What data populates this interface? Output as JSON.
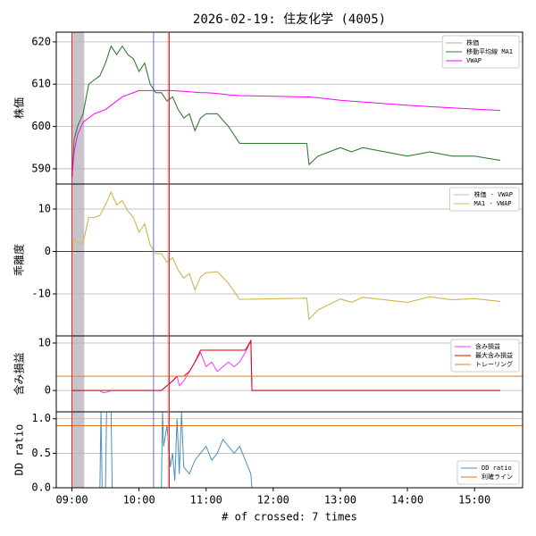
{
  "chart_data": [
    {
      "type": "line",
      "title": "2026-02-19: 住友化学 (4005)",
      "ylabel": "株価",
      "xlim": [
        526,
        943
      ],
      "ylim": [
        586.4,
        622.3
      ],
      "yticks": [
        590,
        600,
        610,
        620
      ],
      "grid": true,
      "legend": "upper right",
      "shade": [
        540,
        551
      ],
      "vlines": [
        {
          "x": 540,
          "color": "#cc0000"
        },
        {
          "x": 613,
          "color": "#4444ff"
        },
        {
          "x": 626,
          "color": "#ff6666"
        },
        {
          "x": 627,
          "color": "#cc0000"
        }
      ],
      "x": [
        540,
        542,
        545,
        550,
        555,
        560,
        565,
        570,
        575,
        580,
        585,
        590,
        595,
        600,
        605,
        610,
        615,
        620,
        625,
        630,
        635,
        640,
        645,
        650,
        655,
        660,
        670,
        680,
        690,
        750,
        752,
        760,
        770,
        780,
        790,
        800,
        820,
        840,
        860,
        880,
        900,
        923
      ],
      "series": [
        {
          "name": "株価",
          "color": "#aaaaaa",
          "values": [
            588,
            597,
            600,
            603,
            610,
            611,
            612,
            615,
            619,
            617,
            619,
            617,
            616,
            613,
            615,
            610,
            608,
            608,
            606,
            607,
            604,
            602,
            603,
            599,
            602,
            603,
            603,
            600,
            596,
            596,
            591,
            593,
            594,
            595,
            594,
            595,
            594,
            593,
            594,
            593,
            593,
            592
          ]
        },
        {
          "name": "移動平均線 MA1",
          "color": "#2e7d32",
          "values": [
            588,
            597,
            600,
            603,
            610,
            611,
            612,
            615,
            619,
            617,
            619,
            617,
            616,
            613,
            615,
            610,
            608,
            608,
            606,
            607,
            604,
            602,
            603,
            599,
            602,
            603,
            603,
            600,
            596,
            596,
            591,
            593,
            594,
            595,
            594,
            595,
            594,
            593,
            594,
            593,
            593,
            592
          ]
        },
        {
          "name": "VWAP",
          "color": "#ff00ff",
          "values": [
            588,
            594,
            598,
            601,
            602,
            603,
            603.5,
            604,
            605,
            606,
            607,
            607.5,
            608,
            608.5,
            608.5,
            608.5,
            608.5,
            608.5,
            608.5,
            608.5,
            608.4,
            608.3,
            608.2,
            608.1,
            608,
            608,
            607.8,
            607.5,
            607.3,
            607,
            607,
            606.8,
            606.5,
            606.2,
            606,
            605.8,
            605.4,
            605,
            604.7,
            604.4,
            604.1,
            603.8
          ]
        }
      ]
    },
    {
      "type": "line",
      "ylabel": "乖離度",
      "xlim": [
        526,
        943
      ],
      "ylim": [
        -19.9,
        15.9
      ],
      "yticks": [
        -10,
        0,
        10
      ],
      "grid": true,
      "legend": "upper right",
      "x": [
        540,
        542,
        545,
        550,
        555,
        560,
        565,
        570,
        575,
        580,
        585,
        590,
        595,
        600,
        605,
        610,
        615,
        620,
        625,
        630,
        635,
        640,
        645,
        650,
        655,
        660,
        670,
        680,
        690,
        750,
        752,
        760,
        770,
        780,
        790,
        800,
        820,
        840,
        860,
        880,
        900,
        923
      ],
      "series": [
        {
          "name": "株価 - VWAP",
          "color": "#bbbbbb",
          "values": [
            0,
            3,
            2,
            2,
            8,
            8,
            8.5,
            11,
            14,
            11,
            12,
            9.5,
            8,
            4.5,
            6.5,
            1.5,
            -0.5,
            -0.5,
            -2.5,
            -1.5,
            -4.4,
            -6.3,
            -5.2,
            -9.1,
            -6,
            -5,
            -4.8,
            -7.5,
            -11.3,
            -11,
            -16,
            -13.8,
            -12.5,
            -11.2,
            -12,
            -10.8,
            -11.4,
            -12,
            -10.7,
            -11.4,
            -11.1,
            -11.8
          ]
        },
        {
          "name": "MA1 - VWAP",
          "color": "#d4b94a",
          "values": [
            0,
            3,
            2,
            2,
            8,
            8,
            8.5,
            11,
            14,
            11,
            12,
            9.5,
            8,
            4.5,
            6.5,
            1.5,
            -0.5,
            -0.5,
            -2.5,
            -1.5,
            -4.4,
            -6.3,
            -5.2,
            -9.1,
            -6,
            -5,
            -4.8,
            -7.5,
            -11.3,
            -11,
            -16,
            -13.8,
            -12.5,
            -11.2,
            -12,
            -10.8,
            -11.4,
            -12,
            -10.7,
            -11.4,
            -11.1,
            -11.8
          ]
        }
      ]
    },
    {
      "type": "line",
      "ylabel": "含み損益",
      "xlim": [
        526,
        943
      ],
      "ylim": [
        -4.5,
        11.5
      ],
      "yticks": [
        0,
        10
      ],
      "grid": true,
      "legend": "upper right",
      "x": [
        540,
        560,
        565,
        568,
        572,
        575,
        620,
        625,
        630,
        634,
        636,
        640,
        645,
        650,
        655,
        660,
        665,
        670,
        675,
        680,
        685,
        690,
        695,
        700,
        701,
        923
      ],
      "series": [
        {
          "name": "含み損益",
          "color": "#ff33ff",
          "values": [
            0,
            0,
            0,
            -0.5,
            -0.3,
            0,
            0,
            1,
            2,
            3,
            1,
            2,
            4,
            6,
            8,
            5,
            6,
            4,
            5,
            6,
            5,
            6,
            8,
            10.5,
            0,
            0
          ]
        },
        {
          "name": "最大含み損益",
          "color": "#e00000",
          "values": [
            0,
            0,
            0,
            0,
            0,
            0,
            0,
            1,
            2,
            3,
            3,
            3,
            4,
            6,
            8.5,
            8.5,
            8.5,
            8.5,
            8.5,
            8.5,
            8.5,
            8.5,
            8.5,
            10.5,
            0,
            0
          ]
        },
        {
          "name": "トレーリング",
          "color": "#e08020",
          "hline": 3
        }
      ]
    },
    {
      "type": "line",
      "ylabel": "DD ratio",
      "xlabel": "# of crossed: 7 times",
      "xlim": [
        526,
        943
      ],
      "ylim": [
        0,
        1.1
      ],
      "yticks": [
        {
          "value": 0,
          "label": "0.0"
        },
        {
          "value": 0.5,
          "label": "0.5"
        },
        {
          "value": 1,
          "label": "1.0"
        }
      ],
      "xticks": [
        {
          "value": 540,
          "label": "09:00"
        },
        {
          "value": 600,
          "label": "10:00"
        },
        {
          "value": 660,
          "label": "11:00"
        },
        {
          "value": 720,
          "label": "12:00"
        },
        {
          "value": 780,
          "label": "13:00"
        },
        {
          "value": 840,
          "label": "14:00"
        },
        {
          "value": 900,
          "label": "15:00"
        }
      ],
      "grid": true,
      "legend": "lower right",
      "x": [
        540,
        565,
        566,
        567,
        570,
        571,
        575,
        576,
        620,
        621,
        622,
        625,
        628,
        630,
        632,
        634,
        636,
        638,
        640,
        645,
        650,
        655,
        660,
        665,
        670,
        675,
        680,
        685,
        690,
        695,
        700,
        701,
        923
      ],
      "series": [
        {
          "name": "DD ratio",
          "color": "#4a90c0",
          "values": [
            0,
            0,
            1.1,
            0,
            0,
            1.1,
            1.1,
            0,
            0,
            1.1,
            0.6,
            0.9,
            0.3,
            0.5,
            0.1,
            1.0,
            0.2,
            1.1,
            0.3,
            0.2,
            0.4,
            0.5,
            0.6,
            0.4,
            0.5,
            0.7,
            0.6,
            0.5,
            0.6,
            0.4,
            0.2,
            0,
            0
          ]
        },
        {
          "name": "利確ライン",
          "color": "#e07020",
          "hline": 0.9
        }
      ]
    }
  ]
}
